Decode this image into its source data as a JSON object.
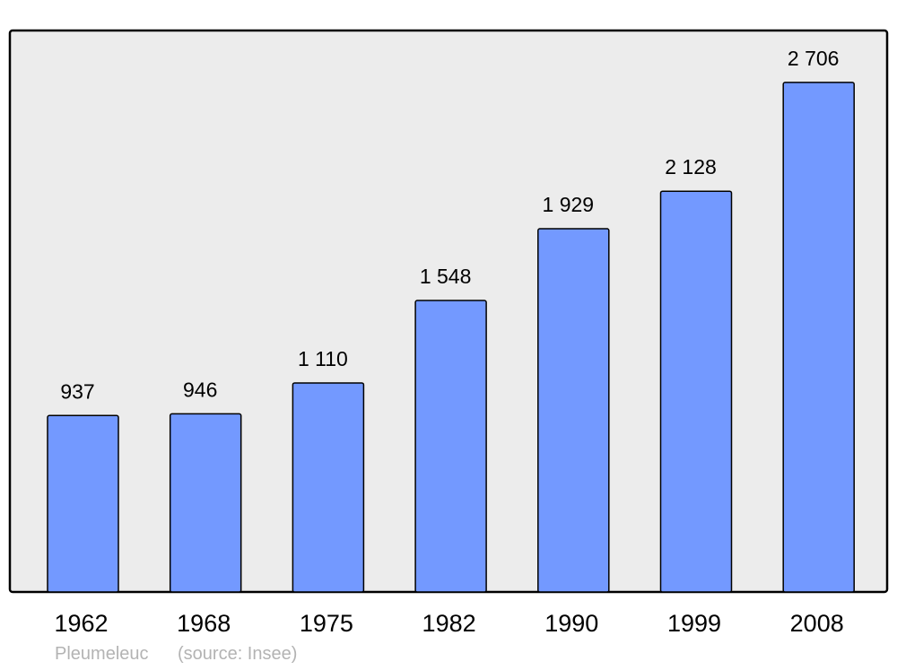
{
  "chart_data": {
    "type": "bar",
    "categories": [
      "1962",
      "1968",
      "1975",
      "1982",
      "1990",
      "1999",
      "2008"
    ],
    "values": [
      937,
      946,
      1110,
      1548,
      1929,
      2128,
      2706
    ],
    "value_labels": [
      "937",
      "946",
      "1 110",
      "1 548",
      "1 929",
      "2 128",
      "2 706"
    ],
    "title": "",
    "xlabel": "",
    "ylabel": "",
    "ylim": [
      0,
      2977
    ],
    "grid": false,
    "colors": {
      "bar": "#7399ff",
      "background": "#ececec",
      "border": "#000000"
    }
  },
  "footer": {
    "place": "Pleumeleuc",
    "source": "(source: Insee)"
  }
}
